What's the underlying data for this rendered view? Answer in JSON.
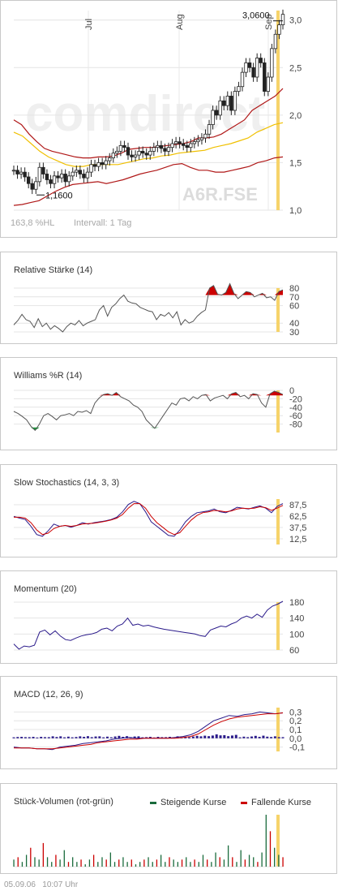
{
  "price": {
    "month_labels": [
      "Jul",
      "Aug",
      "Sep"
    ],
    "y_ticks": [
      "3,0",
      "2,5",
      "2,0",
      "1,5",
      "1,0"
    ],
    "high_label": "3,0600",
    "low_label": "1,1600",
    "watermark": "comdirect",
    "symbol": "A6R.FSE",
    "vol_label": "163,8 %HL",
    "interval_label": "Intervall: 1 Tag"
  },
  "panels": {
    "rsi": {
      "title": "Relative Stärke (14)",
      "ticks": [
        "80",
        "70",
        "60",
        "40",
        "30"
      ]
    },
    "williams": {
      "title": "Williams %R (14)",
      "ticks": [
        "0",
        "-20",
        "-40",
        "-60",
        "-80"
      ]
    },
    "stoch": {
      "title": "Slow Stochastics (14, 3, 3)",
      "ticks": [
        "87,5",
        "62,5",
        "37,5",
        "12,5"
      ]
    },
    "momentum": {
      "title": "Momentum (20)",
      "ticks": [
        "180",
        "140",
        "100",
        "60"
      ]
    },
    "macd": {
      "title": "MACD (12, 26, 9)",
      "ticks": [
        "0,3",
        "0,2",
        "0,1",
        "0,0",
        "-0,1"
      ]
    },
    "volume": {
      "title": "Stück-Volumen (rot-grün)",
      "legend_up": "Steigende Kurse",
      "legend_down": "Fallende Kurse"
    }
  },
  "footer": {
    "date": "05.09.06",
    "time": "10:07 Uhr"
  },
  "colors": {
    "up": "#1a6b3c",
    "down": "#cc0000",
    "band": "#b01818",
    "ma": "#f0c000",
    "highlight": "#f6d36a",
    "purple": "#2a1a8a"
  },
  "chart_data": [
    {
      "type": "candlestick",
      "title": "",
      "x_labels": [
        "Jul",
        "Aug",
        "Sep"
      ],
      "ylim": [
        1.0,
        3.1
      ],
      "y_ticks": [
        1.0,
        1.5,
        2.0,
        2.5,
        3.0
      ],
      "annotations": {
        "high": 3.06,
        "low": 1.16
      },
      "close": [
        1.42,
        1.38,
        1.4,
        1.35,
        1.28,
        1.22,
        1.3,
        1.45,
        1.38,
        1.32,
        1.28,
        1.36,
        1.34,
        1.38,
        1.3,
        1.36,
        1.4,
        1.42,
        1.38,
        1.34,
        1.4,
        1.48,
        1.46,
        1.5,
        1.48,
        1.52,
        1.55,
        1.6,
        1.62,
        1.68,
        1.66,
        1.58,
        1.56,
        1.58,
        1.62,
        1.6,
        1.58,
        1.62,
        1.66,
        1.68,
        1.65,
        1.62,
        1.66,
        1.7,
        1.72,
        1.7,
        1.68,
        1.66,
        1.7,
        1.72,
        1.74,
        1.76,
        1.8,
        1.9,
        2.05,
        2.0,
        2.15,
        2.1,
        2.2,
        2.05,
        2.25,
        2.3,
        2.45,
        2.55,
        2.5,
        2.4,
        2.6,
        2.55,
        2.25,
        2.4,
        2.7,
        2.85,
        2.95,
        3.06
      ],
      "bollinger_upper": [
        1.95,
        1.9,
        1.8,
        1.72,
        1.65,
        1.62,
        1.6,
        1.58,
        1.56,
        1.55,
        1.55,
        1.56,
        1.56,
        1.57,
        1.6,
        1.64,
        1.65,
        1.66,
        1.66,
        1.67,
        1.68,
        1.69,
        1.7,
        1.72,
        1.76,
        1.76,
        1.77,
        1.8,
        1.85,
        1.9,
        1.95,
        2.05,
        2.1,
        2.15,
        2.2,
        2.28
      ],
      "moving_average": [
        1.82,
        1.78,
        1.7,
        1.62,
        1.56,
        1.52,
        1.48,
        1.46,
        1.46,
        1.48,
        1.48,
        1.48,
        1.48,
        1.5,
        1.52,
        1.54,
        1.55,
        1.57,
        1.58,
        1.6,
        1.61,
        1.62,
        1.63,
        1.66,
        1.68,
        1.7,
        1.73,
        1.76,
        1.82,
        1.86,
        1.9,
        1.92
      ],
      "bollinger_lower": [
        1.05,
        1.06,
        1.08,
        1.1,
        1.15,
        1.2,
        1.24,
        1.27,
        1.28,
        1.29,
        1.3,
        1.28,
        1.3,
        1.32,
        1.35,
        1.38,
        1.4,
        1.42,
        1.45,
        1.48,
        1.49,
        1.45,
        1.42,
        1.42,
        1.4,
        1.4,
        1.42,
        1.44,
        1.46,
        1.5,
        1.52,
        1.55,
        1.56
      ]
    },
    {
      "type": "line",
      "title": "Relative Stärke (14)",
      "ylim": [
        30,
        80
      ],
      "values": [
        38,
        43,
        50,
        44,
        42,
        35,
        45,
        36,
        40,
        33,
        37,
        34,
        30,
        36,
        40,
        38,
        43,
        37,
        40,
        42,
        44,
        55,
        60,
        48,
        58,
        62,
        68,
        72,
        65,
        63,
        62,
        58,
        56,
        54,
        53,
        44,
        50,
        48,
        52,
        46,
        53,
        38,
        44,
        40,
        42,
        48,
        52,
        55,
        80,
        83,
        73,
        72,
        75,
        85,
        74,
        68,
        72,
        76,
        75,
        70,
        72,
        74,
        69,
        70,
        66,
        76,
        78
      ]
    },
    {
      "type": "line",
      "title": "Williams %R (14)",
      "ylim": [
        -100,
        0
      ],
      "values": [
        -50,
        -55,
        -62,
        -70,
        -85,
        -95,
        -80,
        -60,
        -55,
        -62,
        -70,
        -60,
        -58,
        -55,
        -60,
        -50,
        -52,
        -48,
        -55,
        -30,
        -18,
        -10,
        -8,
        -12,
        -5,
        -15,
        -20,
        -25,
        -35,
        -40,
        -50,
        -70,
        -80,
        -90,
        -75,
        -60,
        -45,
        -30,
        -35,
        -20,
        -18,
        -25,
        -15,
        -20,
        -12,
        -10,
        -25,
        -18,
        -15,
        -12,
        -20,
        -8,
        -5,
        -15,
        -12,
        -20,
        -8,
        -10,
        -30,
        -40,
        -8,
        -2,
        -5,
        -10
      ]
    },
    {
      "type": "line",
      "title": "Slow Stochastics (14, 3, 3)",
      "ylim": [
        0,
        100
      ],
      "series": [
        {
          "values": [
            62,
            58,
            55,
            40,
            22,
            18,
            30,
            45,
            40,
            42,
            38,
            42,
            48,
            45,
            48,
            50,
            52,
            55,
            60,
            72,
            88,
            95,
            90,
            72,
            50,
            40,
            30,
            20,
            18,
            32,
            50,
            62,
            70,
            72,
            74,
            78,
            72,
            70,
            75,
            82,
            80,
            78,
            82,
            85,
            80,
            70,
            84,
            90
          ]
        },
        {
          "values": [
            60,
            60,
            58,
            48,
            32,
            22,
            25,
            35,
            40,
            42,
            40,
            42,
            45,
            46,
            47,
            49,
            51,
            54,
            58,
            66,
            80,
            90,
            90,
            80,
            62,
            48,
            38,
            28,
            22,
            26,
            40,
            54,
            64,
            70,
            72,
            75,
            74,
            72,
            74,
            78,
            80,
            79,
            80,
            83,
            81,
            75,
            80,
            86
          ]
        }
      ]
    },
    {
      "type": "line",
      "title": "Momentum (20)",
      "ylim": [
        60,
        180
      ],
      "values": [
        75,
        62,
        70,
        68,
        72,
        105,
        110,
        98,
        108,
        95,
        86,
        84,
        90,
        95,
        98,
        100,
        104,
        112,
        115,
        108,
        120,
        125,
        140,
        122,
        125,
        120,
        122,
        118,
        115,
        112,
        110,
        108,
        106,
        104,
        102,
        100,
        96,
        94,
        110,
        115,
        120,
        118,
        125,
        130,
        140,
        145,
        140,
        150,
        142,
        160,
        170,
        175,
        182
      ]
    },
    {
      "type": "bar+line",
      "title": "MACD (12, 26, 9)",
      "ylim": [
        -0.15,
        0.35
      ],
      "macd": [
        -0.1,
        -0.11,
        -0.11,
        -0.12,
        -0.12,
        -0.13,
        -0.1,
        -0.09,
        -0.08,
        -0.06,
        -0.05,
        -0.04,
        -0.03,
        -0.01,
        0.0,
        0.01,
        0.0,
        0.0,
        0.0,
        0.0,
        0.0,
        0.01,
        0.02,
        0.04,
        0.08,
        0.14,
        0.2,
        0.23,
        0.26,
        0.25,
        0.27,
        0.28,
        0.3,
        0.29,
        0.28,
        0.29
      ],
      "signal": [
        -0.11,
        -0.11,
        -0.11,
        -0.12,
        -0.12,
        -0.12,
        -0.11,
        -0.1,
        -0.09,
        -0.08,
        -0.07,
        -0.05,
        -0.04,
        -0.03,
        -0.02,
        -0.01,
        -0.01,
        0.0,
        0.0,
        0.0,
        0.0,
        0.0,
        0.01,
        0.02,
        0.05,
        0.1,
        0.15,
        0.19,
        0.22,
        0.24,
        0.25,
        0.26,
        0.27,
        0.28,
        0.28,
        0.29
      ]
    },
    {
      "type": "bar",
      "title": "Stück-Volumen (rot-grün)",
      "series": [
        {
          "name": "Steigende Kurse"
        },
        {
          "name": "Fallende Kurse"
        }
      ],
      "values": [
        3,
        4,
        2,
        5,
        8,
        4,
        3,
        10,
        4,
        2,
        5,
        3,
        7,
        2,
        4,
        2,
        3,
        1,
        3,
        5,
        2,
        4,
        3,
        6,
        2,
        3,
        4,
        2,
        3,
        1,
        2,
        3,
        4,
        2,
        3,
        5,
        2,
        4,
        3,
        2,
        3,
        4,
        2,
        3,
        2,
        5,
        3,
        2,
        6,
        4,
        3,
        9,
        4,
        2,
        7,
        3,
        5,
        4,
        2,
        6,
        22,
        15,
        8,
        5,
        4
      ]
    }
  ]
}
